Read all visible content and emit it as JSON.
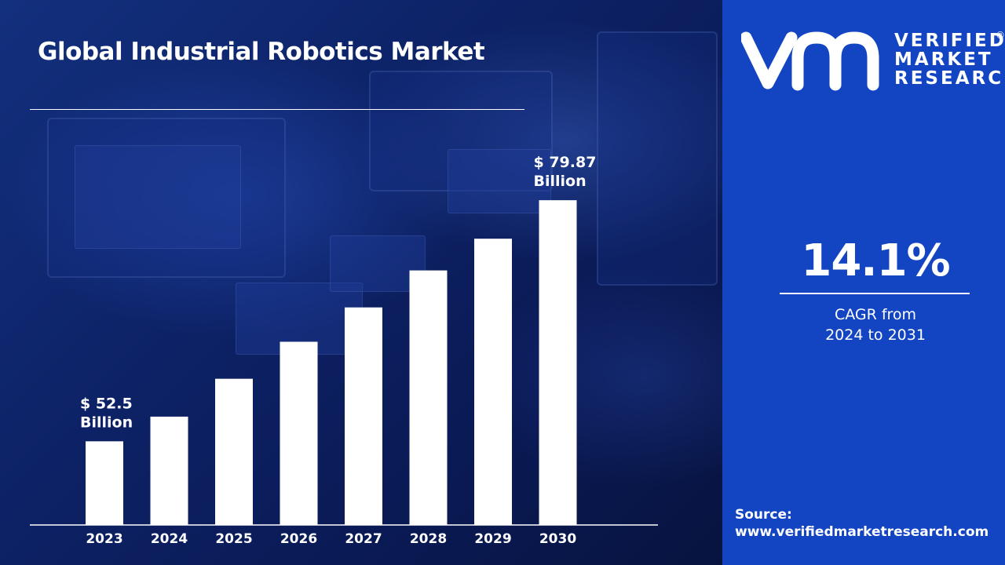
{
  "title": "Global Industrial Robotics Market",
  "chart_data": {
    "type": "bar",
    "categories": [
      "2023",
      "2024",
      "2025",
      "2026",
      "2027",
      "2028",
      "2029",
      "2030"
    ],
    "values": [
      52.5,
      55.3,
      59.6,
      63.8,
      67.7,
      71.9,
      75.5,
      79.87
    ],
    "annotations": [
      {
        "category": "2023",
        "line1": "$ 52.5",
        "line2": "Billion"
      },
      {
        "category": "2030",
        "line1": "$ 79.87",
        "line2": "Billion"
      }
    ],
    "xlabel": "",
    "ylabel": "",
    "ylim": [
      43,
      83
    ],
    "grid": false,
    "bar_color": "#ffffff"
  },
  "sidebar": {
    "brand_line1": "VERIFIED",
    "brand_line2": "MARKET",
    "brand_line3": "RESEARCH",
    "registered_mark": "®",
    "cagr_value": "14.1%",
    "cagr_label_line1": "CAGR from",
    "cagr_label_line2": "2024 to 2031",
    "source_label": "Source:",
    "source_url": "www.verifiedmarketresearch.com",
    "background_color": "#1344c2"
  }
}
